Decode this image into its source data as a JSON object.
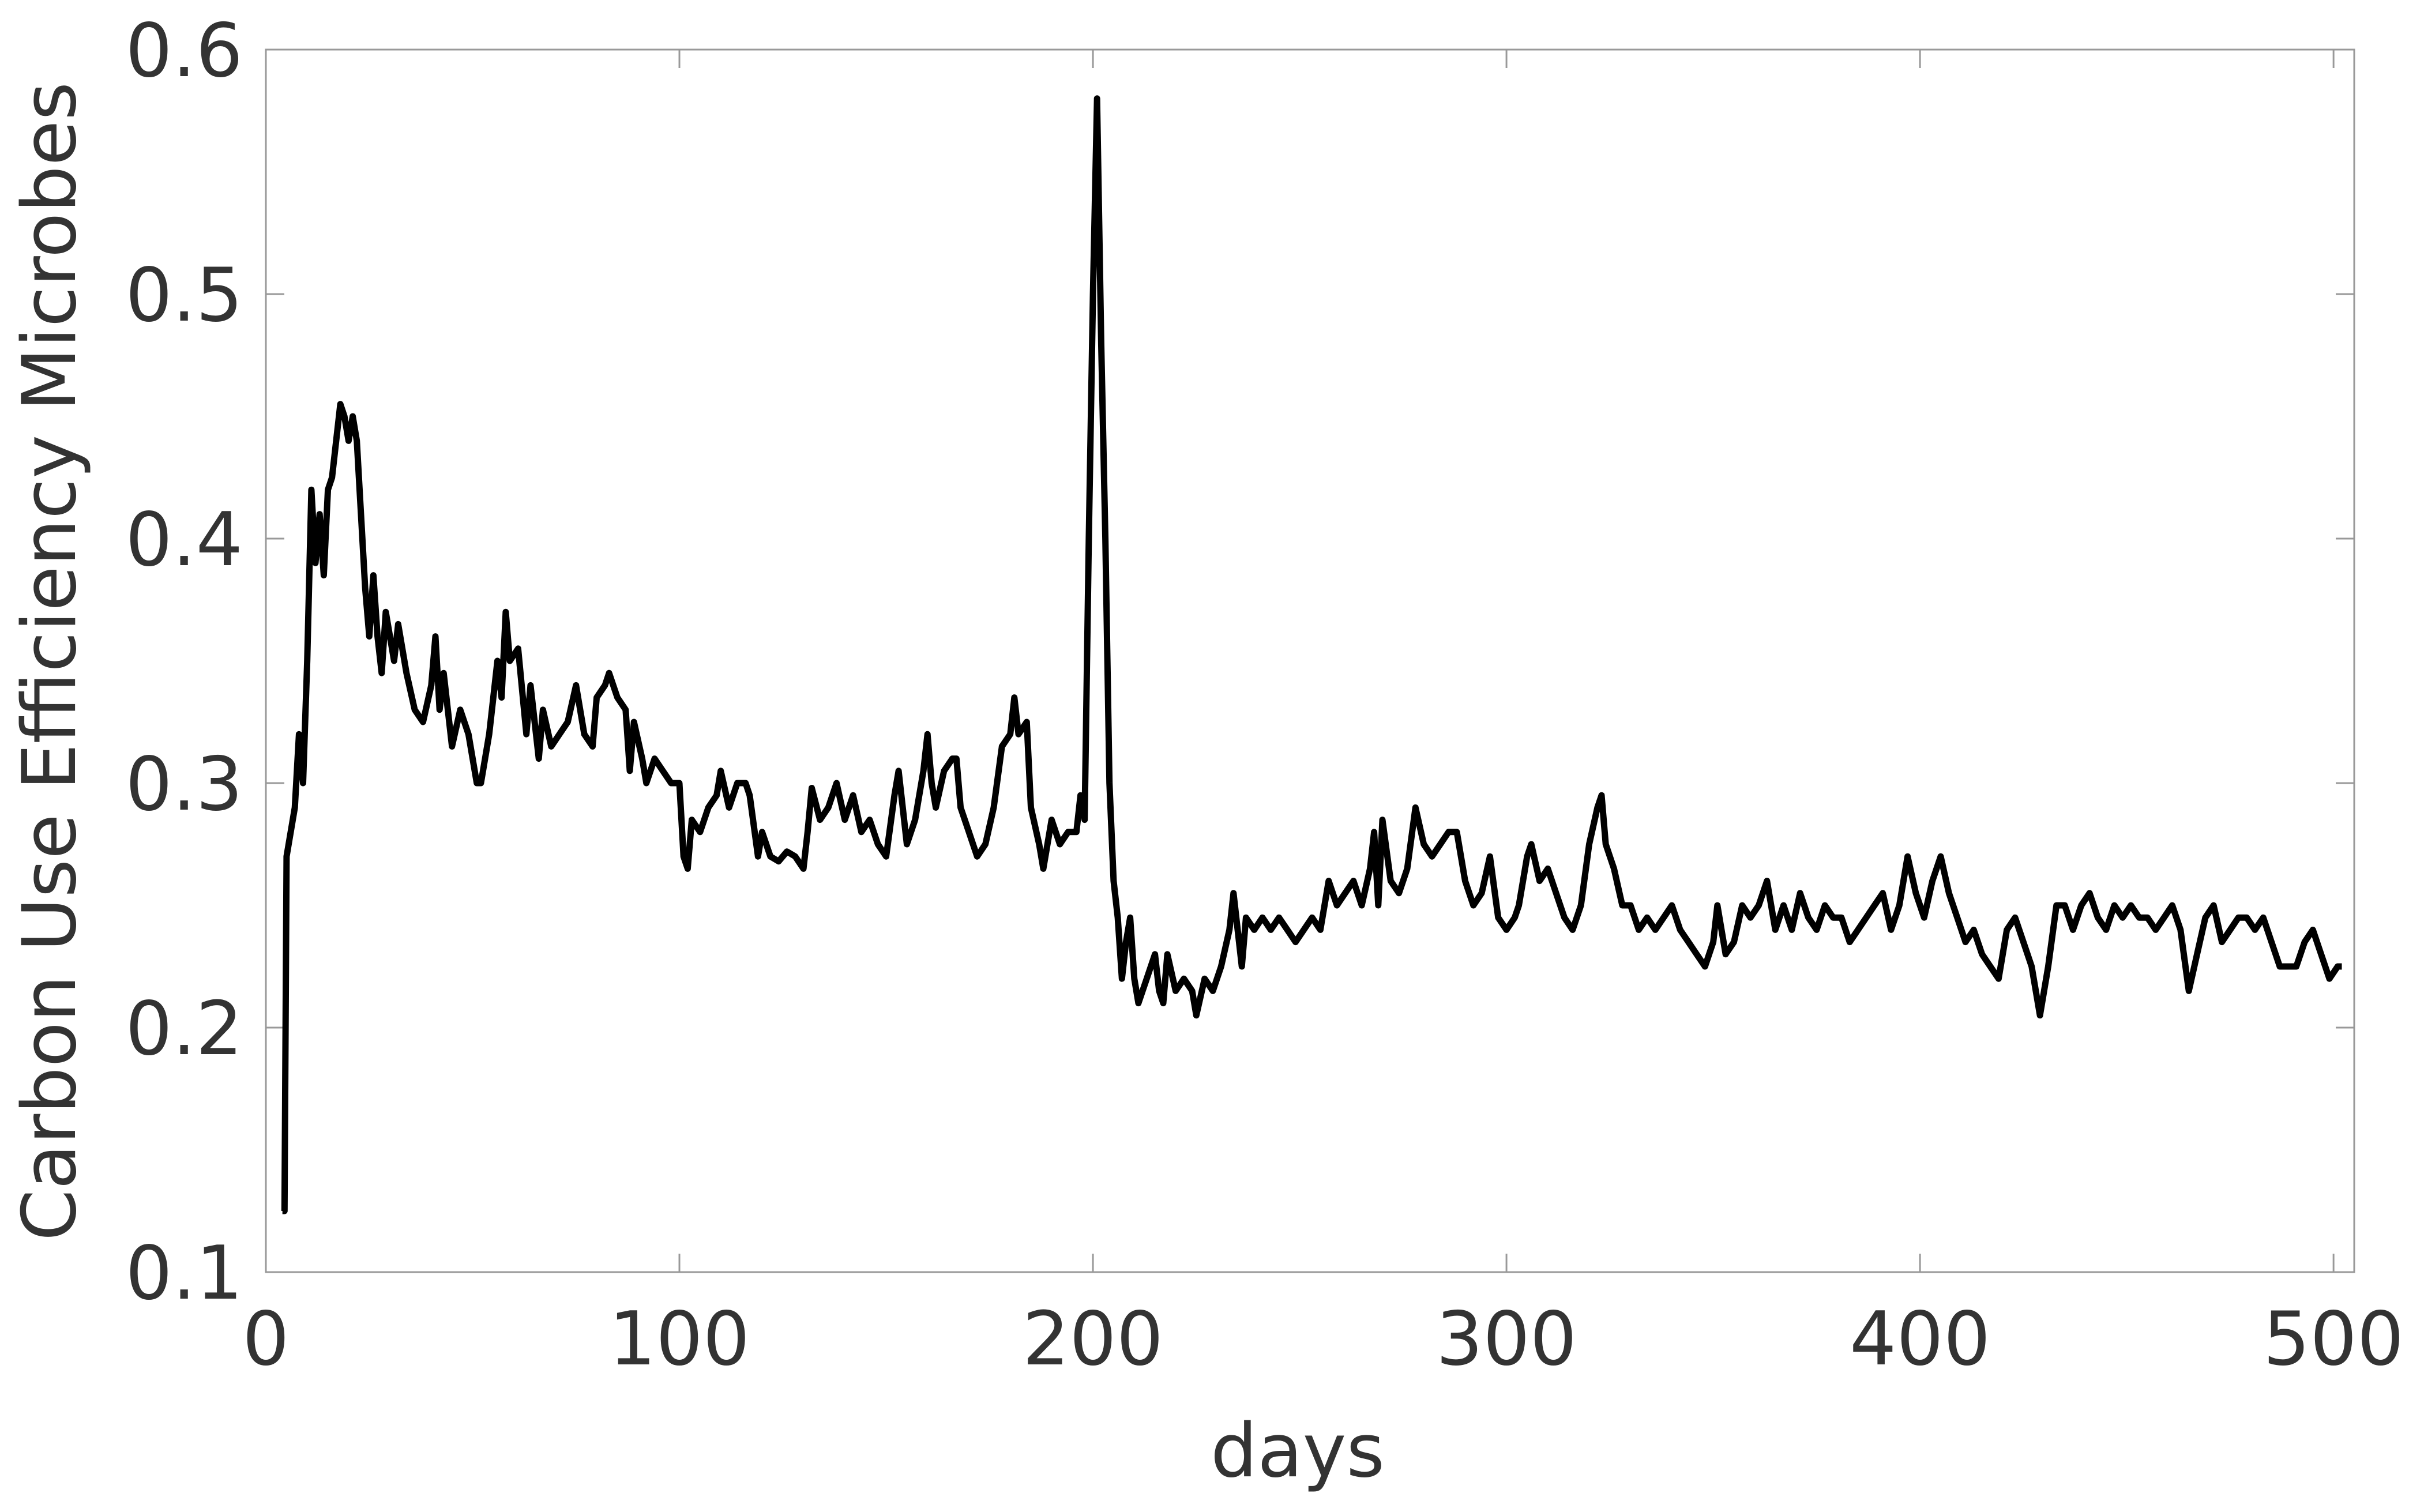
{
  "chart_data": {
    "type": "line",
    "xlabel": "days",
    "ylabel": "Carbon Use Efficiency Microbes",
    "xlim": [
      0,
      505
    ],
    "ylim": [
      0.1,
      0.6
    ],
    "xticks": [
      0,
      100,
      200,
      300,
      400,
      500
    ],
    "yticks": [
      0.1,
      0.2,
      0.3,
      0.4,
      0.5,
      0.6
    ],
    "grid": false,
    "color": "#000000",
    "x": [
      4,
      4.5,
      5,
      7,
      8,
      9,
      10,
      11,
      12,
      13,
      14,
      15,
      16,
      17,
      18,
      19,
      20,
      21,
      22,
      23,
      24,
      25,
      26,
      27,
      28,
      29,
      30,
      31,
      32,
      34,
      36,
      38,
      40,
      41,
      42,
      43,
      45,
      47,
      49,
      51,
      52,
      54,
      56,
      57,
      58,
      59,
      61,
      63,
      64,
      66,
      67,
      69,
      71,
      73,
      75,
      77,
      79,
      80,
      82,
      83,
      85,
      87,
      88,
      89,
      91,
      92,
      94,
      96,
      98,
      100,
      101,
      102,
      103,
      105,
      107,
      109,
      110,
      112,
      114,
      116,
      117,
      119,
      120,
      122,
      124,
      126,
      128,
      130,
      131,
      132,
      134,
      136,
      137,
      138,
      140,
      142,
      144,
      146,
      148,
      150,
      152,
      153,
      155,
      157,
      159,
      160,
      161,
      162,
      164,
      166,
      167,
      168,
      170,
      172,
      174,
      176,
      178,
      180,
      181,
      182,
      184,
      185,
      187,
      188,
      190,
      192,
      194,
      196,
      197,
      198,
      199,
      200,
      201,
      202,
      203,
      204,
      205,
      206,
      207,
      208,
      209,
      210,
      211,
      213,
      215,
      216,
      217,
      218,
      220,
      222,
      224,
      225,
      227,
      229,
      231,
      233,
      234,
      236,
      237,
      239,
      241,
      243,
      245,
      247,
      249,
      251,
      253,
      255,
      257,
      259,
      261,
      263,
      265,
      267,
      268,
      269,
      270,
      272,
      274,
      276,
      278,
      280,
      282,
      284,
      286,
      288,
      290,
      292,
      294,
      296,
      298,
      300,
      302,
      303,
      305,
      306,
      308,
      310,
      312,
      314,
      316,
      318,
      320,
      322,
      323,
      324,
      326,
      328,
      330,
      332,
      334,
      336,
      338,
      340,
      342,
      344,
      346,
      348,
      350,
      351,
      353,
      355,
      357,
      359,
      361,
      363,
      365,
      367,
      369,
      371,
      373,
      375,
      377,
      379,
      381,
      383,
      385,
      387,
      389,
      391,
      393,
      395,
      397,
      399,
      401,
      403,
      405,
      407,
      409,
      411,
      413,
      415,
      417,
      419,
      421,
      423,
      425,
      427,
      429,
      431,
      433,
      435,
      437,
      439,
      441,
      443,
      445,
      447,
      449,
      451,
      453,
      455,
      457,
      459,
      461,
      463,
      465,
      467,
      469,
      471,
      473,
      475,
      477,
      479,
      481,
      483,
      485,
      487,
      489,
      491,
      493,
      495,
      497,
      499,
      501,
      502
    ],
    "values": [
      0.125,
      0.125,
      0.27,
      0.29,
      0.32,
      0.3,
      0.35,
      0.42,
      0.39,
      0.41,
      0.385,
      0.42,
      0.425,
      0.44,
      0.455,
      0.45,
      0.44,
      0.45,
      0.44,
      0.41,
      0.38,
      0.36,
      0.385,
      0.36,
      0.345,
      0.37,
      0.36,
      0.35,
      0.365,
      0.345,
      0.33,
      0.325,
      0.34,
      0.36,
      0.33,
      0.345,
      0.315,
      0.33,
      0.32,
      0.3,
      0.3,
      0.32,
      0.35,
      0.335,
      0.37,
      0.35,
      0.355,
      0.32,
      0.34,
      0.31,
      0.33,
      0.315,
      0.32,
      0.325,
      0.34,
      0.32,
      0.315,
      0.335,
      0.34,
      0.345,
      0.335,
      0.33,
      0.305,
      0.325,
      0.31,
      0.3,
      0.31,
      0.305,
      0.3,
      0.3,
      0.27,
      0.265,
      0.285,
      0.28,
      0.29,
      0.295,
      0.305,
      0.29,
      0.3,
      0.3,
      0.295,
      0.27,
      0.28,
      0.27,
      0.268,
      0.272,
      0.27,
      0.265,
      0.28,
      0.298,
      0.285,
      0.29,
      0.295,
      0.3,
      0.285,
      0.295,
      0.28,
      0.285,
      0.275,
      0.27,
      0.295,
      0.305,
      0.275,
      0.285,
      0.305,
      0.32,
      0.3,
      0.29,
      0.305,
      0.31,
      0.31,
      0.29,
      0.28,
      0.27,
      0.275,
      0.29,
      0.315,
      0.32,
      0.335,
      0.32,
      0.325,
      0.29,
      0.275,
      0.265,
      0.285,
      0.275,
      0.28,
      0.28,
      0.295,
      0.285,
      0.4,
      0.5,
      0.58,
      0.48,
      0.4,
      0.3,
      0.26,
      0.245,
      0.22,
      0.235,
      0.245,
      0.22,
      0.21,
      0.22,
      0.23,
      0.215,
      0.21,
      0.23,
      0.215,
      0.22,
      0.215,
      0.205,
      0.22,
      0.215,
      0.225,
      0.24,
      0.255,
      0.225,
      0.245,
      0.24,
      0.245,
      0.24,
      0.245,
      0.24,
      0.235,
      0.24,
      0.245,
      0.24,
      0.26,
      0.25,
      0.255,
      0.26,
      0.25,
      0.265,
      0.28,
      0.25,
      0.285,
      0.26,
      0.255,
      0.265,
      0.29,
      0.275,
      0.27,
      0.275,
      0.28,
      0.28,
      0.26,
      0.25,
      0.255,
      0.27,
      0.245,
      0.24,
      0.245,
      0.25,
      0.27,
      0.275,
      0.26,
      0.265,
      0.255,
      0.245,
      0.24,
      0.25,
      0.275,
      0.29,
      0.295,
      0.275,
      0.265,
      0.25,
      0.25,
      0.24,
      0.245,
      0.24,
      0.245,
      0.25,
      0.24,
      0.235,
      0.23,
      0.225,
      0.235,
      0.25,
      0.23,
      0.235,
      0.25,
      0.245,
      0.25,
      0.26,
      0.24,
      0.25,
      0.24,
      0.255,
      0.245,
      0.24,
      0.25,
      0.245,
      0.245,
      0.235,
      0.24,
      0.245,
      0.25,
      0.255,
      0.24,
      0.25,
      0.27,
      0.255,
      0.245,
      0.26,
      0.27,
      0.255,
      0.245,
      0.235,
      0.24,
      0.23,
      0.225,
      0.22,
      0.24,
      0.245,
      0.235,
      0.225,
      0.205,
      0.225,
      0.25,
      0.25,
      0.24,
      0.25,
      0.255,
      0.245,
      0.24,
      0.25,
      0.245,
      0.25,
      0.245,
      0.245,
      0.24,
      0.245,
      0.25,
      0.24,
      0.215,
      0.23,
      0.245,
      0.25,
      0.235,
      0.24,
      0.245,
      0.245,
      0.24,
      0.245,
      0.235,
      0.225,
      0.225,
      0.225,
      0.235,
      0.24,
      0.23,
      0.22,
      0.225,
      0.225
    ]
  }
}
